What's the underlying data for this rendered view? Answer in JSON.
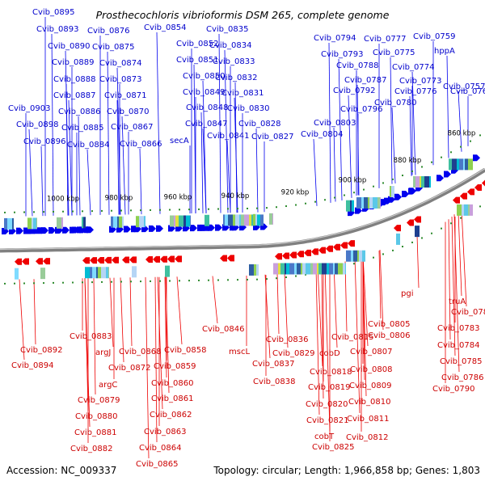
{
  "title": "Prosthecochloris vibrioformis DSM 265, complete genome",
  "footer": {
    "accession": "Accession: NC_009337",
    "summary": "Topology: circular; Length: 1,966,858 bp; Genes: 1,803"
  },
  "scale_labels": [
    "1000 kbp",
    "980 kbp",
    "960 kbp",
    "940 kbp",
    "920 kbp",
    "900 kbp",
    "880 kbp",
    "860 kbp"
  ],
  "colors": {
    "forward_strand": "#0000ee",
    "reverse_strand": "#ee0000",
    "backbone": "#808080",
    "scale_dots": "#2e8b2e",
    "forward_label": "#0000cc",
    "reverse_label": "#cc0000"
  },
  "forward_labels": [
    "Cvib_0895",
    "Cvib_0893",
    "Cvib_0890",
    "Cvib_0889",
    "Cvib_0888",
    "Cvib_0887",
    "Cvib_0903",
    "Cvib_0886",
    "Cvib_0898",
    "Cvib_0885",
    "Cvib_0896",
    "Cvib_0884",
    "Cvib_0876",
    "Cvib_0875",
    "Cvib_0874",
    "Cvib_0873",
    "Cvib_0871",
    "Cvib_0870",
    "Cvib_0867",
    "Cvib_0866",
    "Cvib_0854",
    "Cvib_0852",
    "Cvib_0851",
    "Cvib_0850",
    "Cvib_0849",
    "Cvib_0848",
    "Cvib_0847",
    "secA",
    "Cvib_0835",
    "Cvib_0834",
    "Cvib_0833",
    "Cvib_0832",
    "Cvib_0831",
    "Cvib_0830",
    "Cvib_0828",
    "Cvib_0841",
    "Cvib_0827",
    "Cvib_0794",
    "Cvib_0793",
    "Cvib_0788",
    "Cvib_0787",
    "Cvib_0792",
    "Cvib_0796",
    "Cvib_0803",
    "Cvib_0804",
    "Cvib_0777",
    "Cvib_0775",
    "Cvib_0774",
    "Cvib_0773",
    "Cvib_0776",
    "Cvib_0780",
    "Cvib_0759",
    "hppA",
    "Cvib_0757",
    "Cvib_0761"
  ],
  "reverse_labels": [
    "Cvib_0883",
    "Cvib_0892",
    "argJ",
    "Cvib_0894",
    "argC",
    "Cvib_0879",
    "Cvib_0880",
    "Cvib_0881",
    "Cvib_0882",
    "Cvib_0868",
    "Cvib_0872",
    "Cvib_0858",
    "Cvib_0859",
    "Cvib_0860",
    "Cvib_0861",
    "Cvib_0862",
    "Cvib_0863",
    "Cvib_0864",
    "Cvib_0865",
    "Cvib_0846",
    "mscL",
    "Cvib_0836",
    "Cvib_0829",
    "Cvib_0837",
    "Cvib_0838",
    "Cvib_0815",
    "cobD",
    "Cvib_0818",
    "Cvib_0819",
    "Cvib_0820",
    "Cvib_0821",
    "cobT",
    "Cvib_0825",
    "Cvib_0805",
    "Cvib_0806",
    "Cvib_0807",
    "Cvib_0808",
    "Cvib_0809",
    "Cvib_0810",
    "Cvib_0811",
    "Cvib_0812",
    "pgi",
    "truA",
    "Cvib_0782",
    "Cvib_0783",
    "Cvib_0784",
    "Cvib_0785",
    "Cvib_0786",
    "Cvib_0790"
  ]
}
